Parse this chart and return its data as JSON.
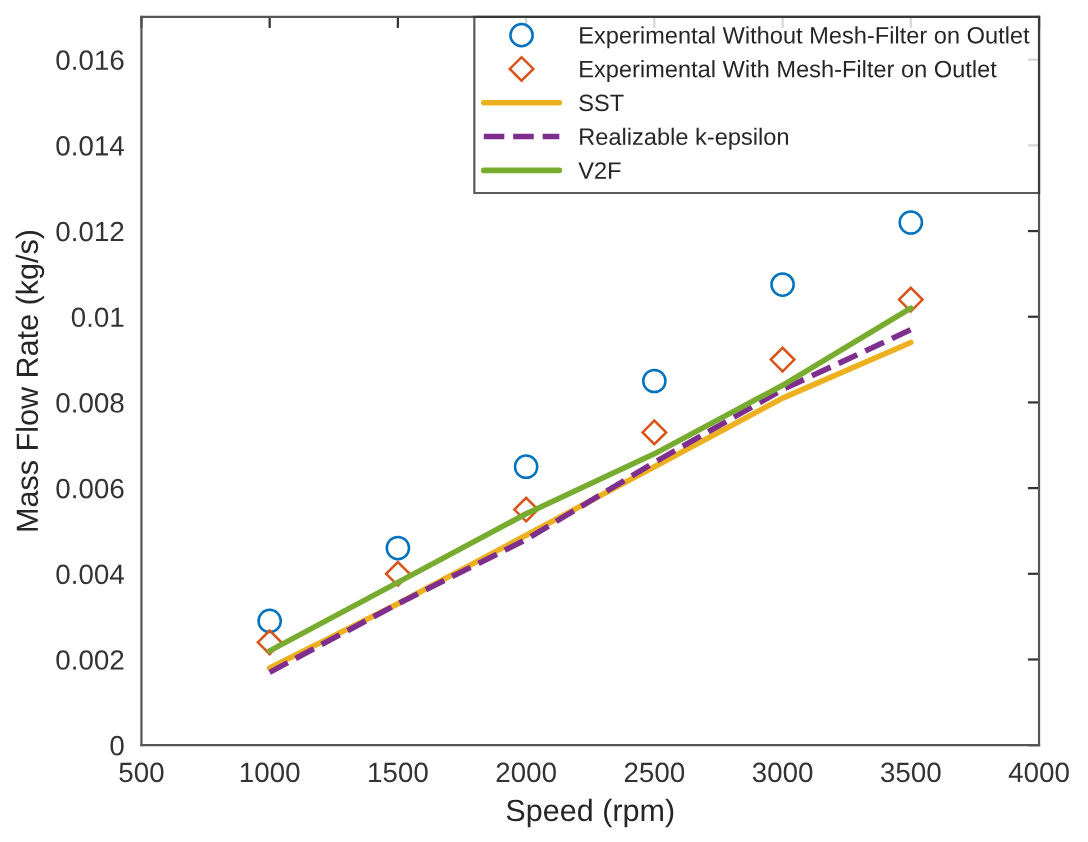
{
  "chart_data": {
    "type": "line",
    "xlabel": "Speed (rpm)",
    "ylabel": "Mass Flow Rate (kg/s)",
    "x": [
      1000,
      1500,
      2000,
      2500,
      3000,
      3500
    ],
    "series": [
      {
        "name": "Experimental Without Mesh-Filter on Outlet",
        "type": "scatter",
        "marker": "circle",
        "color": "#0072bd",
        "values": [
          0.0029,
          0.0046,
          0.0065,
          0.0085,
          0.01075,
          0.0122
        ]
      },
      {
        "name": "Experimental With Mesh-Filter on Outlet",
        "type": "scatter",
        "marker": "diamond",
        "color": "#d95319",
        "values": [
          0.0024,
          0.004,
          0.0055,
          0.0073,
          0.009,
          0.0104
        ]
      },
      {
        "name": "SST",
        "line_style": "solid",
        "color": "#edb120",
        "values": [
          0.0018,
          0.0033,
          0.0049,
          0.0065,
          0.0081,
          0.0094
        ]
      },
      {
        "name": "Realizable k-epsilon",
        "line_style": "dashed",
        "color": "#7e2f8e",
        "values": [
          0.0017,
          0.0033,
          0.0048,
          0.0066,
          0.0083,
          0.0097
        ]
      },
      {
        "name": "V2F",
        "line_style": "solid",
        "color": "#77ac30",
        "values": [
          0.0022,
          0.0038,
          0.0054,
          0.0068,
          0.0084,
          0.0102
        ]
      }
    ],
    "xlim": [
      500,
      4000
    ],
    "xticks": [
      500,
      1000,
      1500,
      2000,
      2500,
      3000,
      3500,
      4000
    ],
    "ylim": [
      0,
      0.017
    ],
    "yticks": [
      0,
      0.002,
      0.004,
      0.006,
      0.008,
      0.01,
      0.012,
      0.014,
      0.016
    ],
    "grid": false,
    "legend": "top right"
  }
}
